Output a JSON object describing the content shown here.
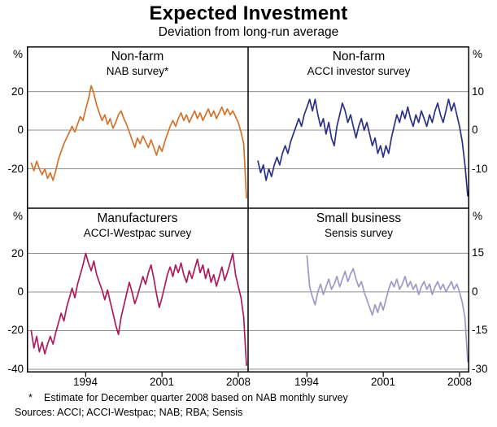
{
  "title": "Expected Investment",
  "subtitle": "Deviation from long-run average",
  "footnote_marker": "*",
  "footnote_text": "Estimate for December quarter 2008 based on NAB monthly survey",
  "sources": "Sources: ACCI; ACCI-Westpac; NAB; RBA; Sensis",
  "chart_data": {
    "type": "line",
    "title": "Expected Investment",
    "subtitle": "Deviation from long-run average",
    "xlim": [
      1988.6,
      2008.9
    ],
    "x_ticks": [
      1994,
      2001,
      2008
    ],
    "grid": true,
    "panels": [
      {
        "key": "nonfarm-nab",
        "row": 0,
        "col": 0,
        "title": "Non-farm",
        "subtitle": "NAB survey*",
        "unit": "%",
        "axis": "left",
        "color": "#D2732C",
        "ylim": [
          -40.4,
          43.4
        ],
        "yticks": [
          20,
          0,
          -20
        ],
        "start": 1989.0,
        "step": 0.25,
        "values": [
          -17,
          -21,
          -16,
          -20,
          -23,
          -20,
          -25,
          -22,
          -26,
          -21,
          -15,
          -11,
          -7,
          -4,
          -1,
          2,
          -1,
          3,
          7,
          5,
          11,
          16,
          23,
          19,
          13,
          9,
          5,
          8,
          3,
          6,
          1,
          4,
          8,
          10,
          6,
          3,
          -1,
          -5,
          -9,
          -4,
          -7,
          -3,
          -6,
          -9,
          -5,
          -9,
          -13,
          -8,
          -11,
          -6,
          -2,
          2,
          5,
          2,
          6,
          9,
          5,
          8,
          4,
          7,
          10,
          6,
          9,
          5,
          8,
          11,
          7,
          10,
          6,
          9,
          12,
          8,
          11,
          8,
          10,
          7,
          4,
          -1,
          -7,
          -35
        ]
      },
      {
        "key": "nonfarm-acci",
        "row": 0,
        "col": 1,
        "title": "Non-farm",
        "subtitle": "ACCI investor survey",
        "unit": "%",
        "axis": "right",
        "color": "#2B3087",
        "ylim": [
          -20.2,
          21.7
        ],
        "yticks": [
          10,
          0,
          -10
        ],
        "start": 1989.5,
        "step": 0.25,
        "values": [
          -8,
          -11,
          -9,
          -13,
          -10,
          -12,
          -9,
          -7,
          -9,
          -6,
          -4,
          -6,
          -3,
          -1,
          1,
          3,
          1,
          4,
          6,
          8,
          5,
          8,
          4,
          1,
          3,
          -1,
          2,
          -2,
          -4,
          1,
          4,
          7,
          5,
          2,
          4,
          1,
          -2,
          1,
          3,
          0,
          2,
          -1,
          -4,
          -2,
          -6,
          -4,
          -7,
          -4,
          -6,
          -2,
          1,
          4,
          2,
          5,
          3,
          6,
          3,
          1,
          4,
          2,
          5,
          3,
          1,
          4,
          2,
          5,
          7,
          4,
          2,
          5,
          8,
          5,
          7,
          4,
          1,
          -3,
          -9,
          -17
        ]
      },
      {
        "key": "manufacturers",
        "row": 1,
        "col": 0,
        "title": "Manufacturers",
        "subtitle": "ACCI-Westpac survey",
        "unit": "%",
        "axis": "left",
        "color": "#AE1A5C",
        "ylim": [
          -41.7,
          43.4
        ],
        "yticks": [
          20,
          0,
          -20,
          -40
        ],
        "start": 1989.0,
        "step": 0.25,
        "values": [
          -20,
          -29,
          -23,
          -31,
          -26,
          -32,
          -27,
          -23,
          -27,
          -21,
          -16,
          -11,
          -15,
          -8,
          -3,
          2,
          -3,
          4,
          9,
          14,
          20,
          15,
          11,
          16,
          9,
          5,
          1,
          -4,
          1,
          -5,
          -11,
          -17,
          -22,
          -13,
          -7,
          -1,
          5,
          0,
          -6,
          -2,
          3,
          8,
          4,
          10,
          14,
          7,
          -1,
          -8,
          -3,
          3,
          9,
          13,
          8,
          14,
          10,
          15,
          9,
          5,
          11,
          7,
          12,
          17,
          10,
          14,
          7,
          12,
          5,
          9,
          3,
          8,
          13,
          6,
          10,
          15,
          20,
          9,
          3,
          -3,
          -13,
          -38
        ]
      },
      {
        "key": "small-business",
        "row": 1,
        "col": 1,
        "title": "Small business",
        "subtitle": "Sensis survey",
        "unit": "%",
        "axis": "right",
        "color": "#9B9AC6",
        "ylim": [
          -31.3,
          32.5
        ],
        "yticks": [
          15,
          0,
          -15,
          -30
        ],
        "start": 1994.0,
        "step": 0.25,
        "values": [
          14,
          2,
          -2,
          -5,
          0,
          3,
          -1,
          2,
          5,
          1,
          3,
          6,
          2,
          5,
          8,
          4,
          7,
          9,
          5,
          2,
          4,
          0,
          -3,
          -6,
          -9,
          -5,
          -8,
          -4,
          -7,
          -3,
          1,
          4,
          2,
          5,
          1,
          3,
          6,
          2,
          4,
          1,
          3,
          -1,
          2,
          4,
          1,
          3,
          -1,
          2,
          4,
          1,
          3,
          0,
          2,
          4,
          1,
          3,
          0,
          -4,
          -10,
          -27
        ]
      }
    ]
  }
}
